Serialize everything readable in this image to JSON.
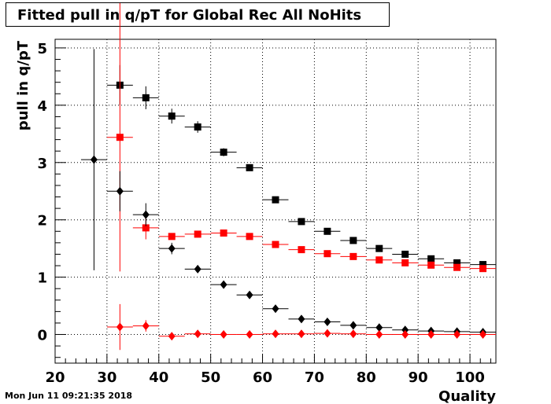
{
  "title": "Fitted pull in q/pT for Global Rec All NoHits",
  "timestamp": "Mon Jun 11 09:21:35 2018",
  "chart_data": {
    "type": "scatter",
    "title": "Fitted pull in q/pT for Global Rec All NoHits",
    "xlabel": "Quality",
    "ylabel": "pull in q/pT",
    "xlim": [
      20,
      105
    ],
    "ylim": [
      -0.5,
      5.15
    ],
    "xticks": [
      "20",
      "30",
      "40",
      "50",
      "60",
      "70",
      "80",
      "90",
      "100"
    ],
    "yticks": [
      "0",
      "1",
      "2",
      "3",
      "4",
      "5"
    ],
    "grid": true,
    "series": [
      {
        "color": "#000000",
        "marker": "square",
        "points": [
          {
            "x": 32.5,
            "y": 4.35,
            "xerr": 2.5,
            "yerr": 0.35
          },
          {
            "x": 37.5,
            "y": 4.13,
            "xerr": 2.5,
            "yerr": 0.2
          },
          {
            "x": 42.5,
            "y": 3.81,
            "xerr": 2.5,
            "yerr": 0.13
          },
          {
            "x": 47.5,
            "y": 3.62,
            "xerr": 2.5,
            "yerr": 0.1
          },
          {
            "x": 52.5,
            "y": 3.18,
            "xerr": 2.5,
            "yerr": 0.07
          },
          {
            "x": 57.5,
            "y": 2.91,
            "xerr": 2.5,
            "yerr": 0.05
          },
          {
            "x": 62.5,
            "y": 2.35,
            "xerr": 2.5,
            "yerr": 0.04
          },
          {
            "x": 67.5,
            "y": 1.97,
            "xerr": 2.5,
            "yerr": 0.03
          },
          {
            "x": 72.5,
            "y": 1.8,
            "xerr": 2.5,
            "yerr": 0.02
          },
          {
            "x": 77.5,
            "y": 1.64,
            "xerr": 2.5,
            "yerr": 0.02
          },
          {
            "x": 82.5,
            "y": 1.5,
            "xerr": 2.5,
            "yerr": 0.02
          },
          {
            "x": 87.5,
            "y": 1.4,
            "xerr": 2.5,
            "yerr": 0.02
          },
          {
            "x": 92.5,
            "y": 1.32,
            "xerr": 2.5,
            "yerr": 0.02
          },
          {
            "x": 97.5,
            "y": 1.25,
            "xerr": 2.5,
            "yerr": 0.02
          },
          {
            "x": 102.5,
            "y": 1.22,
            "xerr": 2.5,
            "yerr": 0.02
          }
        ]
      },
      {
        "color": "#ff0000",
        "marker": "square",
        "points": [
          {
            "x": 32.5,
            "y": 3.44,
            "xerr": 2.5,
            "yerr": 2.34
          },
          {
            "x": 37.5,
            "y": 1.86,
            "xerr": 2.5,
            "yerr": 0.2
          },
          {
            "x": 42.5,
            "y": 1.71,
            "xerr": 2.5,
            "yerr": 0.05
          },
          {
            "x": 47.5,
            "y": 1.75,
            "xerr": 2.5,
            "yerr": 0.04
          },
          {
            "x": 52.5,
            "y": 1.77,
            "xerr": 2.5,
            "yerr": 0.03
          },
          {
            "x": 57.5,
            "y": 1.71,
            "xerr": 2.5,
            "yerr": 0.03
          },
          {
            "x": 62.5,
            "y": 1.57,
            "xerr": 2.5,
            "yerr": 0.02
          },
          {
            "x": 67.5,
            "y": 1.48,
            "xerr": 2.5,
            "yerr": 0.02
          },
          {
            "x": 72.5,
            "y": 1.41,
            "xerr": 2.5,
            "yerr": 0.02
          },
          {
            "x": 77.5,
            "y": 1.36,
            "xerr": 2.5,
            "yerr": 0.02
          },
          {
            "x": 82.5,
            "y": 1.3,
            "xerr": 2.5,
            "yerr": 0.02
          },
          {
            "x": 87.5,
            "y": 1.25,
            "xerr": 2.5,
            "yerr": 0.02
          },
          {
            "x": 92.5,
            "y": 1.21,
            "xerr": 2.5,
            "yerr": 0.02
          },
          {
            "x": 97.5,
            "y": 1.17,
            "xerr": 2.5,
            "yerr": 0.02
          },
          {
            "x": 102.5,
            "y": 1.15,
            "xerr": 2.5,
            "yerr": 0.02
          }
        ]
      },
      {
        "color": "#000000",
        "marker": "diamond",
        "points": [
          {
            "x": 27.5,
            "y": 3.05,
            "xerr": 2.5,
            "yerr": 1.93
          },
          {
            "x": 32.5,
            "y": 2.5,
            "xerr": 2.5,
            "yerr": 0.35
          },
          {
            "x": 37.5,
            "y": 2.09,
            "xerr": 2.5,
            "yerr": 0.2
          },
          {
            "x": 42.5,
            "y": 1.5,
            "xerr": 2.5,
            "yerr": 0.1
          },
          {
            "x": 47.5,
            "y": 1.14,
            "xerr": 2.5,
            "yerr": 0.05
          },
          {
            "x": 52.5,
            "y": 0.87,
            "xerr": 2.5,
            "yerr": 0.03
          },
          {
            "x": 57.5,
            "y": 0.69,
            "xerr": 2.5,
            "yerr": 0.02
          },
          {
            "x": 62.5,
            "y": 0.45,
            "xerr": 2.5,
            "yerr": 0.02
          },
          {
            "x": 67.5,
            "y": 0.27,
            "xerr": 2.5,
            "yerr": 0.02
          },
          {
            "x": 72.5,
            "y": 0.22,
            "xerr": 2.5,
            "yerr": 0.02
          },
          {
            "x": 77.5,
            "y": 0.16,
            "xerr": 2.5,
            "yerr": 0.02
          },
          {
            "x": 82.5,
            "y": 0.12,
            "xerr": 2.5,
            "yerr": 0.02
          },
          {
            "x": 87.5,
            "y": 0.08,
            "xerr": 2.5,
            "yerr": 0.02
          },
          {
            "x": 92.5,
            "y": 0.06,
            "xerr": 2.5,
            "yerr": 0.02
          },
          {
            "x": 97.5,
            "y": 0.05,
            "xerr": 2.5,
            "yerr": 0.02
          },
          {
            "x": 102.5,
            "y": 0.04,
            "xerr": 2.5,
            "yerr": 0.02
          }
        ]
      },
      {
        "color": "#ff0000",
        "marker": "diamond",
        "points": [
          {
            "x": 32.5,
            "y": 0.13,
            "xerr": 2.5,
            "yerr": 0.4
          },
          {
            "x": 37.5,
            "y": 0.15,
            "xerr": 2.5,
            "yerr": 0.1
          },
          {
            "x": 42.5,
            "y": -0.03,
            "xerr": 2.5,
            "yerr": 0.05
          },
          {
            "x": 47.5,
            "y": 0.01,
            "xerr": 2.5,
            "yerr": 0.03
          },
          {
            "x": 52.5,
            "y": 0.0,
            "xerr": 2.5,
            "yerr": 0.02
          },
          {
            "x": 57.5,
            "y": 0.0,
            "xerr": 2.5,
            "yerr": 0.02
          },
          {
            "x": 62.5,
            "y": 0.01,
            "xerr": 2.5,
            "yerr": 0.02
          },
          {
            "x": 67.5,
            "y": 0.01,
            "xerr": 2.5,
            "yerr": 0.02
          },
          {
            "x": 72.5,
            "y": 0.02,
            "xerr": 2.5,
            "yerr": 0.02
          },
          {
            "x": 77.5,
            "y": 0.01,
            "xerr": 2.5,
            "yerr": 0.02
          },
          {
            "x": 82.5,
            "y": 0.0,
            "xerr": 2.5,
            "yerr": 0.02
          },
          {
            "x": 87.5,
            "y": 0.0,
            "xerr": 2.5,
            "yerr": 0.02
          },
          {
            "x": 92.5,
            "y": 0.0,
            "xerr": 2.5,
            "yerr": 0.02
          },
          {
            "x": 97.5,
            "y": 0.0,
            "xerr": 2.5,
            "yerr": 0.02
          },
          {
            "x": 102.5,
            "y": 0.0,
            "xerr": 2.5,
            "yerr": 0.02
          }
        ]
      }
    ]
  }
}
